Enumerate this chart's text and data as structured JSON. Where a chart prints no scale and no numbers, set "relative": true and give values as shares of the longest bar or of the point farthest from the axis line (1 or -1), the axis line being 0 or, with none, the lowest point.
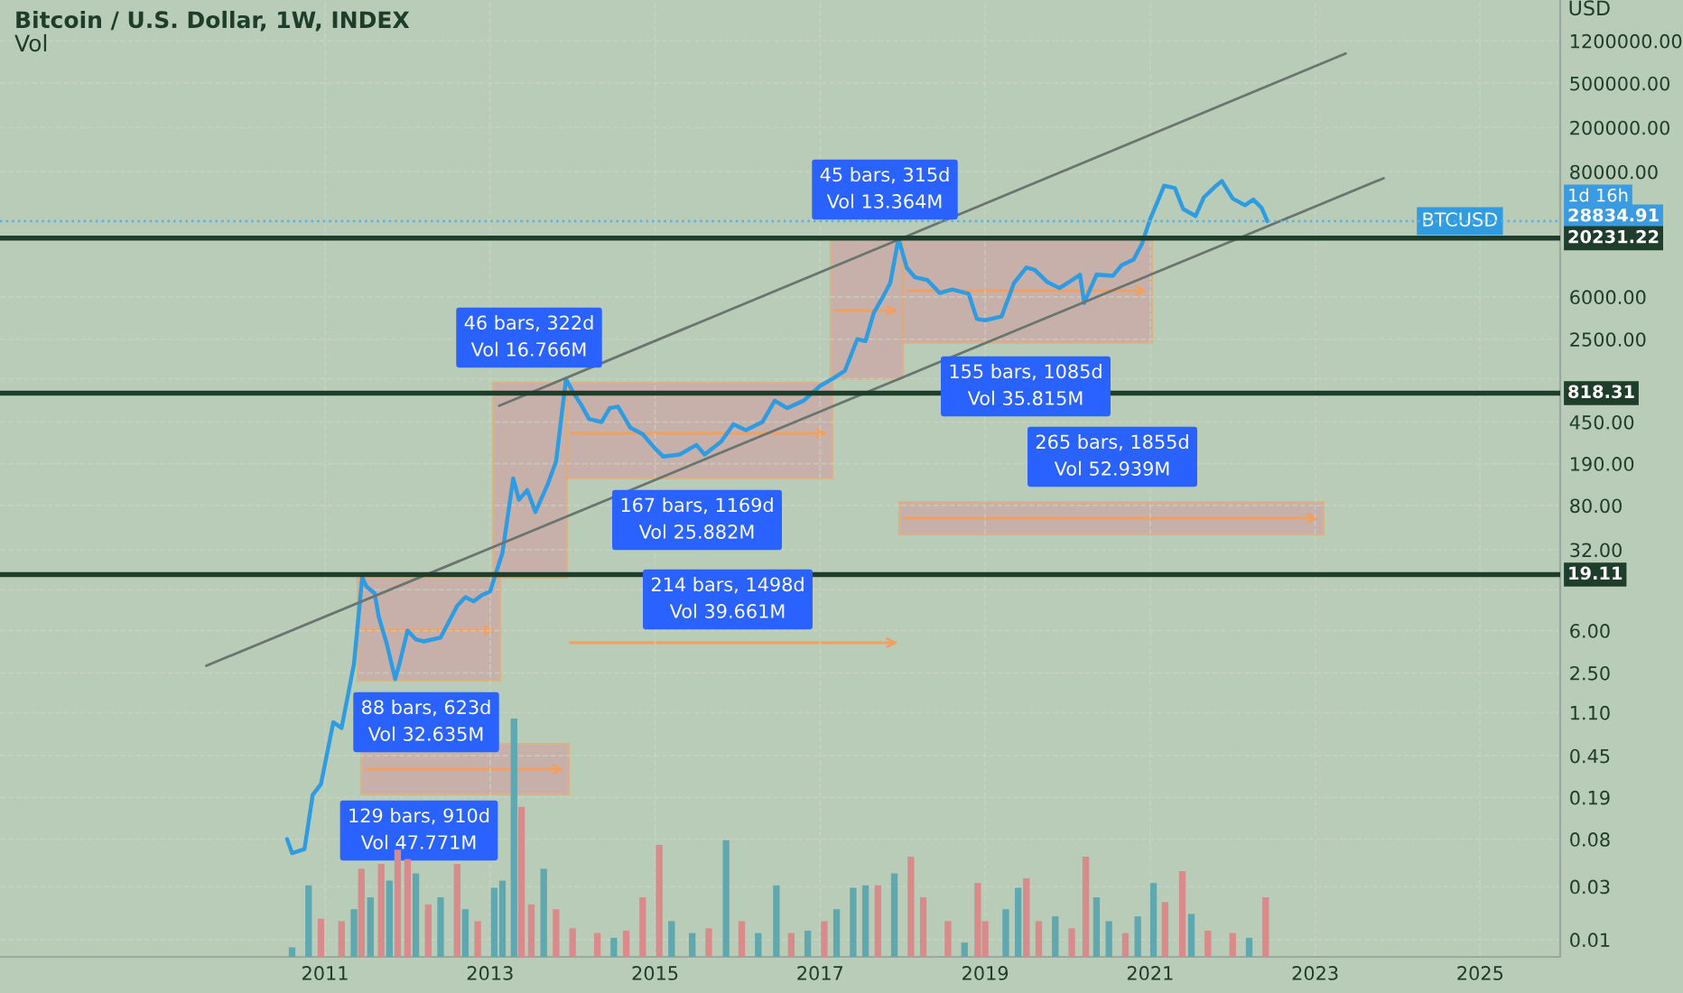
{
  "chart_data": [
    {
      "type": "line",
      "title": "Bitcoin / U.S. Dollar, 1W, INDEX",
      "subtitle": "Vol",
      "ylabel": "USD",
      "log": true,
      "grid": true,
      "xlim": [
        2007.06,
        2025.97
      ],
      "xticks": [
        2011,
        2013,
        2015,
        2017,
        2019,
        2021,
        2023,
        2025
      ],
      "ylim": [
        0.007,
        2800000
      ],
      "yticks": [
        {
          "value": 1200000,
          "label": "1200000.00"
        },
        {
          "value": 500000,
          "label": "500000.00"
        },
        {
          "value": 200000,
          "label": "200000.00"
        },
        {
          "value": 80000,
          "label": "80000.00"
        },
        {
          "value": 6000,
          "label": "6000.00"
        },
        {
          "value": 2500,
          "label": "2500.00"
        },
        {
          "value": 1100,
          "label": null
        },
        {
          "value": 450,
          "label": "450.00"
        },
        {
          "value": 190,
          "label": "190.00"
        },
        {
          "value": 80,
          "label": "80.00"
        },
        {
          "value": 32,
          "label": "32.00"
        },
        {
          "value": 14,
          "label": null
        },
        {
          "value": 6,
          "label": "6.00"
        },
        {
          "value": 2.5,
          "label": "2.50"
        },
        {
          "value": 1.1,
          "label": "1.10"
        },
        {
          "value": 0.45,
          "label": "0.45"
        },
        {
          "value": 0.19,
          "label": "0.19"
        },
        {
          "value": 0.08,
          "label": "0.08"
        },
        {
          "value": 0.03,
          "label": "0.03"
        },
        {
          "value": 0.01,
          "label": "0.01"
        }
      ],
      "series": [
        {
          "name": "BTCUSD",
          "type": "line",
          "color": "#2f9be0",
          "x": [
            2010.54,
            2010.6,
            2010.75,
            2010.85,
            2010.95,
            2011.1,
            2011.2,
            2011.35,
            2011.45,
            2011.5,
            2011.6,
            2011.65,
            2011.75,
            2011.85,
            2011.9,
            2012.0,
            2012.1,
            2012.2,
            2012.4,
            2012.6,
            2012.7,
            2012.8,
            2012.9,
            2013.0,
            2013.15,
            2013.28,
            2013.35,
            2013.45,
            2013.55,
            2013.7,
            2013.8,
            2013.92,
            2014.0,
            2014.1,
            2014.2,
            2014.35,
            2014.45,
            2014.55,
            2014.7,
            2014.85,
            2015.0,
            2015.1,
            2015.3,
            2015.5,
            2015.6,
            2015.8,
            2015.95,
            2016.1,
            2016.3,
            2016.45,
            2016.6,
            2016.8,
            2017.0,
            2017.15,
            2017.3,
            2017.45,
            2017.55,
            2017.65,
            2017.75,
            2017.85,
            2017.95,
            2018.05,
            2018.15,
            2018.3,
            2018.45,
            2018.6,
            2018.8,
            2018.9,
            2019.0,
            2019.2,
            2019.35,
            2019.5,
            2019.6,
            2019.75,
            2019.9,
            2020.0,
            2020.15,
            2020.2,
            2020.35,
            2020.55,
            2020.65,
            2020.8,
            2020.9,
            2021.0,
            2021.1,
            2021.17,
            2021.3,
            2021.4,
            2021.55,
            2021.65,
            2021.8,
            2021.87,
            2022.0,
            2022.15,
            2022.25,
            2022.35,
            2022.42
          ],
          "values": [
            0.08,
            0.06,
            0.065,
            0.2,
            0.25,
            0.9,
            0.8,
            3,
            18,
            15,
            13,
            8,
            4.5,
            2.2,
            3,
            6,
            5,
            4.8,
            5.2,
            10,
            12,
            11,
            12.5,
            13.5,
            30,
            140,
            90,
            110,
            70,
            125,
            200,
            1100,
            850,
            650,
            480,
            450,
            600,
            620,
            400,
            350,
            260,
            220,
            230,
            280,
            230,
            300,
            430,
            380,
            450,
            700,
            600,
            700,
            950,
            1100,
            1300,
            2500,
            2400,
            4300,
            5800,
            8000,
            20000,
            11000,
            9000,
            8500,
            6500,
            7000,
            6400,
            3800,
            3700,
            4000,
            8000,
            11000,
            10500,
            8200,
            7200,
            8000,
            9500,
            5300,
            9500,
            9300,
            11500,
            13000,
            18000,
            30000,
            45000,
            60000,
            57000,
            37000,
            32000,
            47000,
            60000,
            66000,
            46000,
            40000,
            45000,
            38000,
            28834.91
          ]
        },
        {
          "type": "line",
          "color": "#6b7570",
          "x": [
            2013.11,
            2023.37
          ],
          "values": [
            630,
            925000
          ]
        },
        {
          "type": "line",
          "color": "#6b7570",
          "x": [
            2009.56,
            2023.83
          ],
          "values": [
            2.9,
            70000
          ]
        }
      ],
      "ref_lines": [
        {
          "axis": "y",
          "value": 28834.91,
          "label": "28834.91",
          "color": "#5aaee0",
          "line_style": "dotted"
        },
        {
          "axis": "y",
          "value": 20231.22,
          "label": "20231.22",
          "color": "#1e3d2a",
          "line_style": "solid"
        },
        {
          "axis": "y",
          "value": 818.31,
          "label": "818.31",
          "color": "#1e3d2a",
          "line_style": "solid"
        },
        {
          "axis": "y",
          "value": 19.11,
          "label": "19.11",
          "color": "#1e3d2a",
          "line_style": "solid"
        }
      ],
      "annotations": [
        "45 bars, 315d\nVol 13.364M",
        "46 bars, 322d\nVol 16.766M",
        "155 bars, 1085d\nVol 35.815M",
        "265 bars, 1855d\nVol 52.939M",
        "167 bars, 1169d\nVol 25.882M",
        "214 bars, 1498d\nVol 39.661M",
        "88 bars, 623d\nVol 32.635M",
        "129 bars, 910d\nVol 47.771M",
        "1d 16h"
      ]
    },
    {
      "type": "bar",
      "relative": true,
      "xlim": [
        2007.06,
        2025.97
      ],
      "x": [
        2010.6,
        2010.8,
        2010.95,
        2011.2,
        2011.35,
        2011.44,
        2011.55,
        2011.68,
        2011.78,
        2011.88,
        2012.0,
        2012.1,
        2012.25,
        2012.4,
        2012.6,
        2012.7,
        2012.85,
        2013.05,
        2013.15,
        2013.29,
        2013.38,
        2013.5,
        2013.65,
        2013.8,
        2014.0,
        2014.3,
        2014.5,
        2014.65,
        2014.85,
        2015.05,
        2015.2,
        2015.45,
        2015.65,
        2015.86,
        2016.05,
        2016.25,
        2016.47,
        2016.65,
        2016.85,
        2017.05,
        2017.2,
        2017.4,
        2017.55,
        2017.7,
        2017.9,
        2018.1,
        2018.25,
        2018.55,
        2018.75,
        2018.91,
        2019.0,
        2019.25,
        2019.4,
        2019.5,
        2019.65,
        2019.85,
        2020.05,
        2020.22,
        2020.35,
        2020.5,
        2020.7,
        2020.85,
        2021.04,
        2021.18,
        2021.39,
        2021.5,
        2021.7,
        2022.0,
        2022.2,
        2022.4
      ],
      "values": [
        0.04,
        0.3,
        0.16,
        0.15,
        0.2,
        0.37,
        0.25,
        0.39,
        0.32,
        0.45,
        0.41,
        0.35,
        0.22,
        0.25,
        0.39,
        0.2,
        0.15,
        0.29,
        0.32,
        1.0,
        0.63,
        0.22,
        0.37,
        0.2,
        0.12,
        0.1,
        0.08,
        0.11,
        0.25,
        0.47,
        0.15,
        0.1,
        0.12,
        0.49,
        0.15,
        0.1,
        0.3,
        0.1,
        0.11,
        0.15,
        0.2,
        0.29,
        0.3,
        0.3,
        0.35,
        0.42,
        0.25,
        0.15,
        0.06,
        0.31,
        0.15,
        0.2,
        0.29,
        0.33,
        0.15,
        0.17,
        0.12,
        0.42,
        0.25,
        0.15,
        0.1,
        0.17,
        0.31,
        0.23,
        0.36,
        0.18,
        0.11,
        0.1,
        0.08,
        0.25
      ],
      "colors": [
        "#5fa8b0",
        "#5fa8b0",
        "#d98a8a",
        "#d98a8a",
        "#5fa8b0",
        "#d98a8a",
        "#5fa8b0",
        "#d98a8a",
        "#5fa8b0",
        "#d98a8a",
        "#d98a8a",
        "#5fa8b0",
        "#d98a8a",
        "#5fa8b0",
        "#d98a8a",
        "#5fa8b0",
        "#d98a8a",
        "#5fa8b0",
        "#5fa8b0",
        "#5fa8b0",
        "#d98a8a",
        "#d98a8a",
        "#5fa8b0",
        "#d98a8a",
        "#d98a8a",
        "#d98a8a",
        "#5fa8b0",
        "#d98a8a",
        "#d98a8a",
        "#d98a8a",
        "#5fa8b0",
        "#5fa8b0",
        "#d98a8a",
        "#5fa8b0",
        "#d98a8a",
        "#5fa8b0",
        "#5fa8b0",
        "#d98a8a",
        "#5fa8b0",
        "#d98a8a",
        "#5fa8b0",
        "#5fa8b0",
        "#5fa8b0",
        "#d98a8a",
        "#5fa8b0",
        "#d98a8a",
        "#d98a8a",
        "#d98a8a",
        "#5fa8b0",
        "#d98a8a",
        "#d98a8a",
        "#5fa8b0",
        "#5fa8b0",
        "#d98a8a",
        "#d98a8a",
        "#5fa8b0",
        "#d98a8a",
        "#d98a8a",
        "#5fa8b0",
        "#5fa8b0",
        "#d98a8a",
        "#5fa8b0",
        "#5fa8b0",
        "#d98a8a",
        "#d98a8a",
        "#5fa8b0",
        "#d98a8a",
        "#d98a8a",
        "#5fa8b0",
        "#d98a8a"
      ]
    }
  ]
}
